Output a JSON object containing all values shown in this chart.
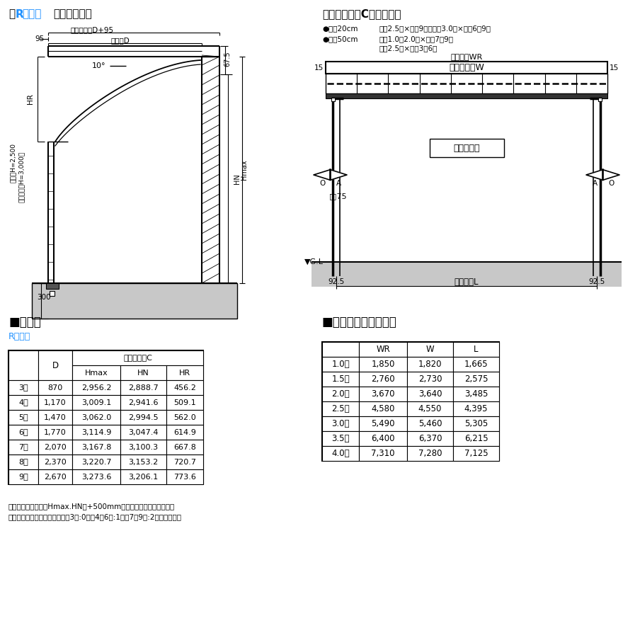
{
  "R_color": "#1e90ff",
  "bg_color": "#ffffff",
  "table1_rows": [
    [
      "3尺",
      "870",
      "2,956.2",
      "2,888.7",
      "456.2"
    ],
    [
      "4尺",
      "1,170",
      "3,009.1",
      "2,941.6",
      "509.1"
    ],
    [
      "5尺",
      "1,470",
      "3,062.0",
      "2,994.5",
      "562.0"
    ],
    [
      "6尺",
      "1,770",
      "3,114.9",
      "3,047.4",
      "614.9"
    ],
    [
      "7尺",
      "2,070",
      "3,167.8",
      "3,100.3",
      "667.8"
    ],
    [
      "8尺",
      "2,370",
      "3,220.7",
      "3,153.2",
      "720.7"
    ],
    [
      "9尺",
      "2,670",
      "3,273.6",
      "3,206.1",
      "773.6"
    ]
  ],
  "table2_rows": [
    [
      "1.0間",
      "1,850",
      "1,820",
      "1,665"
    ],
    [
      "1.5間",
      "2,760",
      "2,730",
      "2,575"
    ],
    [
      "2.0間",
      "3,670",
      "3,640",
      "3,485"
    ],
    [
      "2.5間",
      "4,580",
      "4,550",
      "4,395"
    ],
    [
      "3.0間",
      "5,490",
      "5,460",
      "5,305"
    ],
    [
      "3.5間",
      "6,400",
      "6,370",
      "6,215"
    ],
    [
      "4.0間",
      "7,310",
      "7,280",
      "7,125"
    ]
  ],
  "note1": "・ロング柱の場合はHmax.HNに+500mm加算した尿法になります。",
  "note2": "・中桁は垂木１ピッチ当たり、3尺:0本、4～6尺:1本、7～9尺:2本入ります。"
}
